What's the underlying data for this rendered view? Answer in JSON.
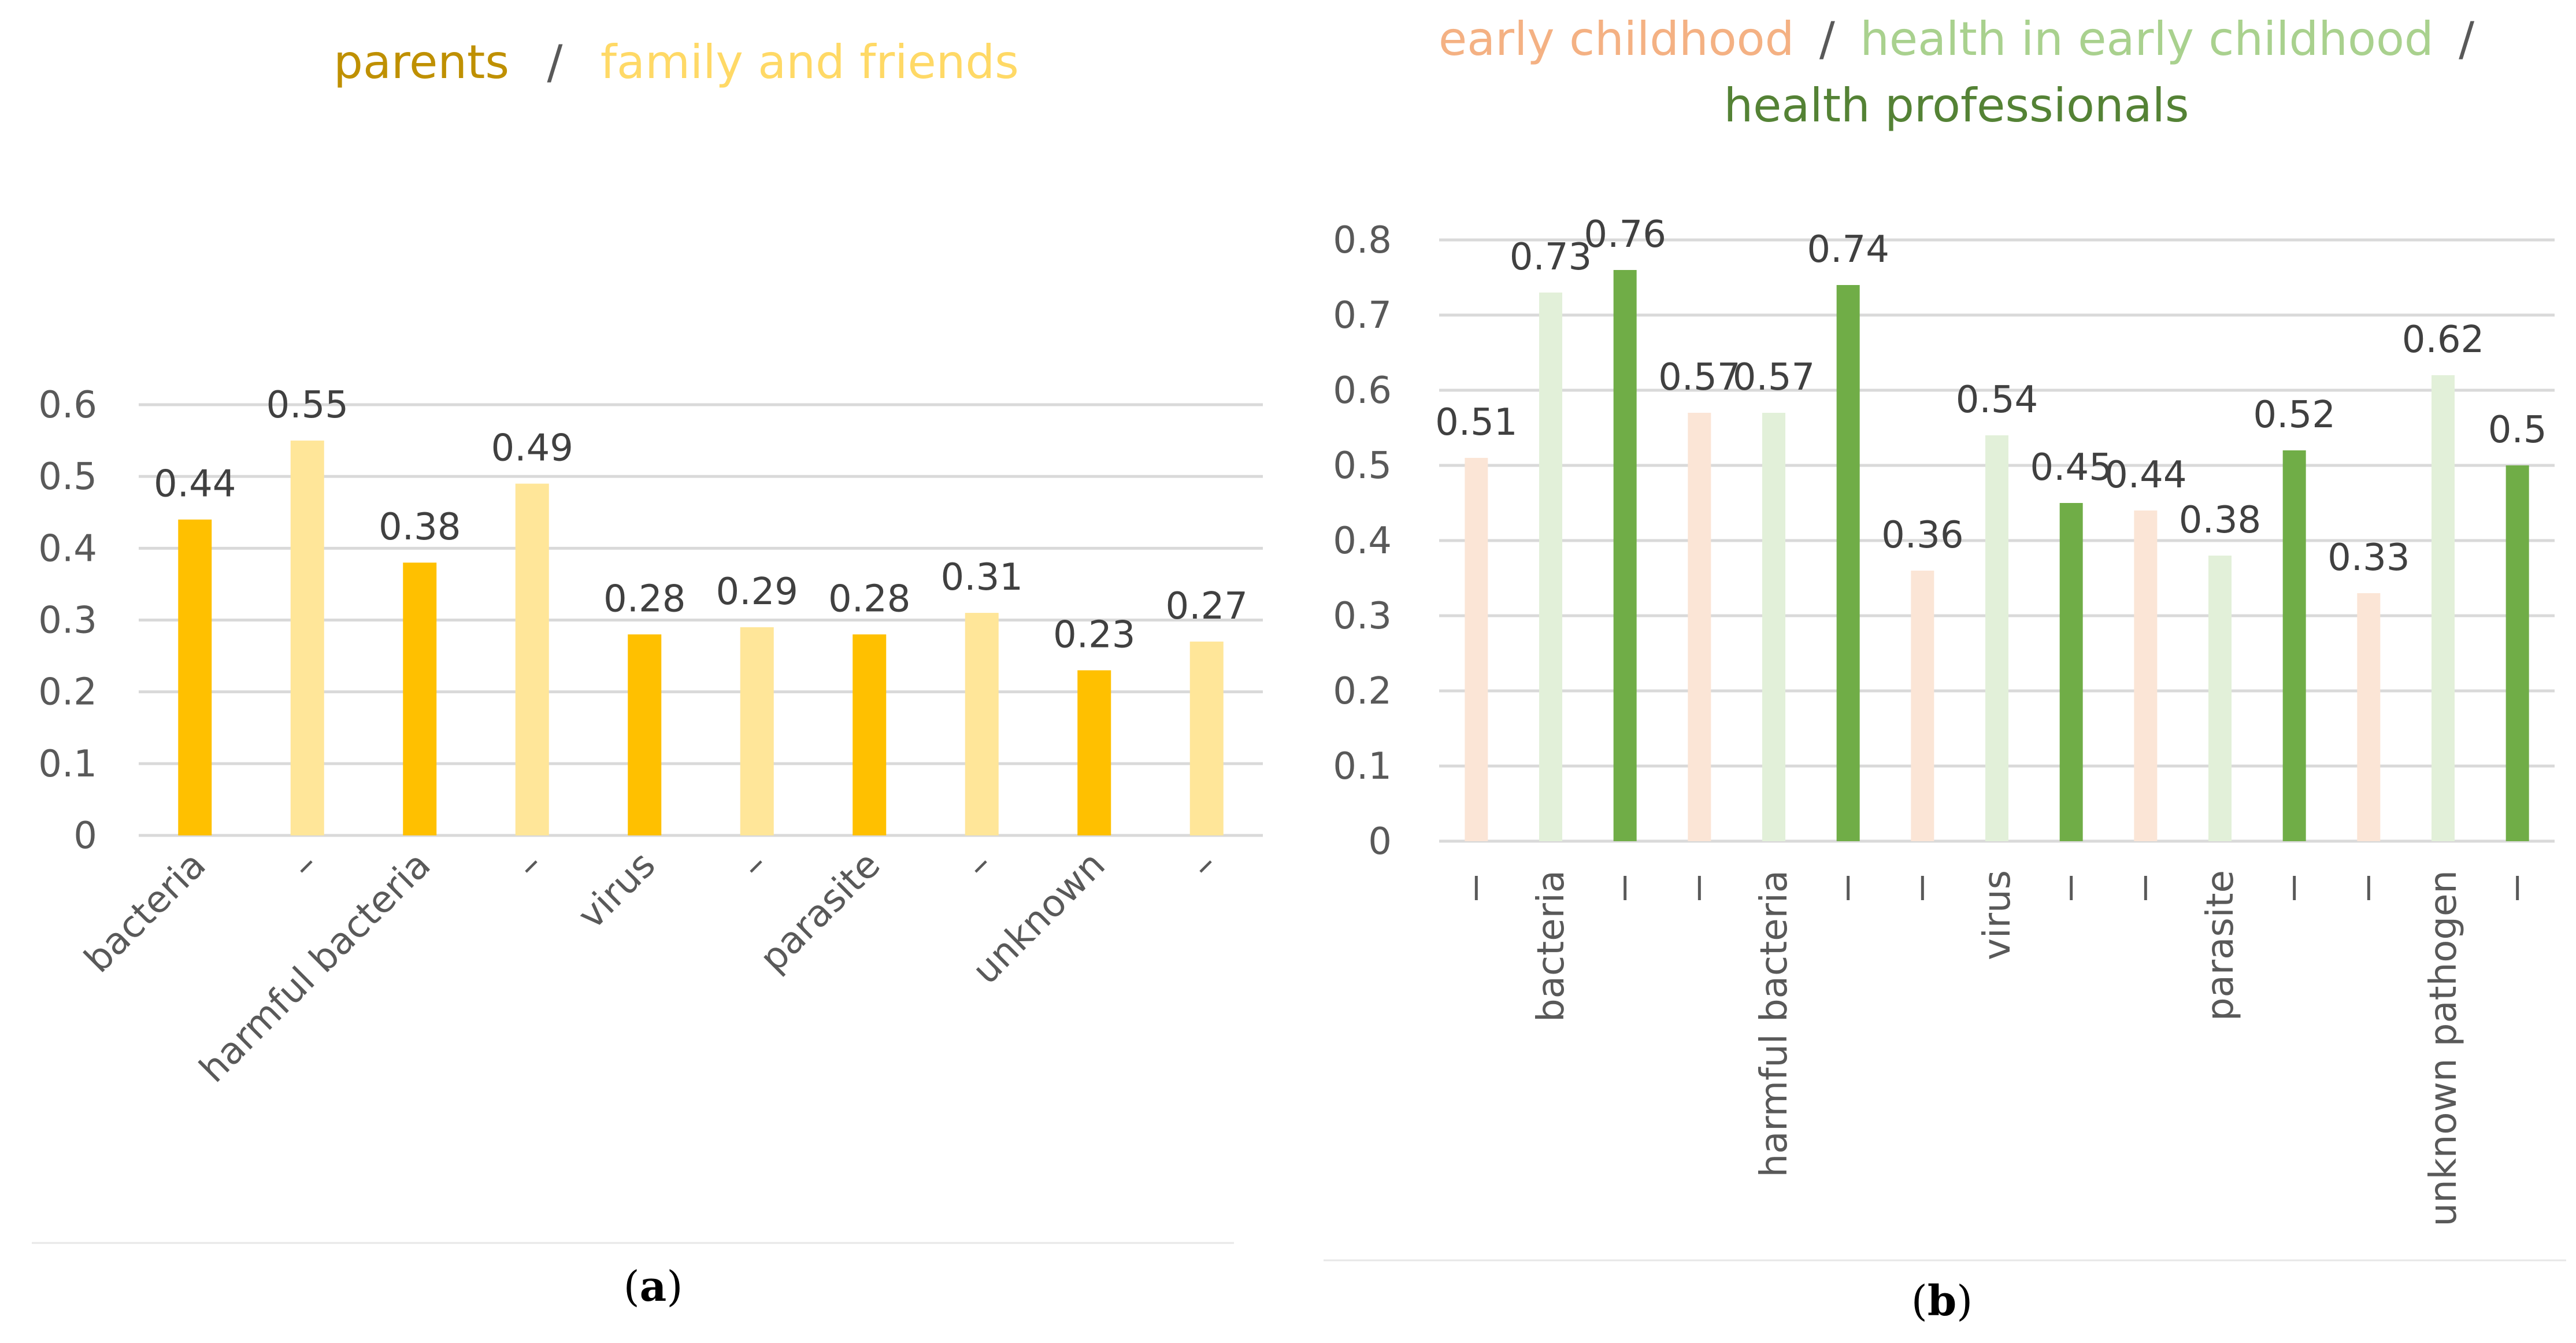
{
  "colors": {
    "parents": "#ffc000",
    "family_and_friends": "#ffe699",
    "early_childhood": "#fbe5d6",
    "health_in_early_childhood": "#e2f0d9",
    "health_professionals": "#70ad47",
    "title_parents": "#bf9000",
    "title_family": "#ffd966",
    "title_early": "#f4b183",
    "title_health_early": "#a9d18e",
    "title_health_prof": "#548235"
  },
  "chart_data": [
    {
      "id": "a",
      "type": "bar",
      "caption": "a",
      "title_parts": [
        "parents",
        "/",
        "family and friends"
      ],
      "categories": [
        "bacteria",
        "–",
        "harmful bacteria",
        "–",
        "virus",
        "–",
        "parasite",
        "–",
        "unknown",
        "–"
      ],
      "values": [
        0.44,
        0.55,
        0.38,
        0.49,
        0.28,
        0.29,
        0.28,
        0.31,
        0.23,
        0.27
      ],
      "bar_series": [
        "parents",
        "family_and_friends",
        "parents",
        "family_and_friends",
        "parents",
        "family_and_friends",
        "parents",
        "family_and_friends",
        "parents",
        "family_and_friends"
      ],
      "value_labels": [
        "0.44",
        "0.55",
        "0.38",
        "0.49",
        "0.28",
        "0.29",
        "0.28",
        "0.31",
        "0.23",
        "0.27"
      ],
      "ylim": [
        0,
        0.6
      ],
      "yticks": [
        "0",
        "0.1",
        "0.2",
        "0.3",
        "0.4",
        "0.5",
        "0.6"
      ],
      "grid": true
    },
    {
      "id": "b",
      "type": "bar",
      "caption": "b",
      "title_parts": [
        "early childhood",
        "/",
        "health in early childhood",
        "/",
        "health professionals"
      ],
      "categories": [
        "–",
        "bacteria",
        "–",
        "–",
        "harmful bacteria",
        "–",
        "–",
        "virus",
        "–",
        "–",
        "parasite",
        "–",
        "–",
        "unknown pathogen",
        "–"
      ],
      "values": [
        0.51,
        0.73,
        0.76,
        0.57,
        0.57,
        0.74,
        0.36,
        0.54,
        0.45,
        0.44,
        0.38,
        0.52,
        0.33,
        0.62,
        0.5
      ],
      "bar_series": [
        "early_childhood",
        "health_in_early_childhood",
        "health_professionals",
        "early_childhood",
        "health_in_early_childhood",
        "health_professionals",
        "early_childhood",
        "health_in_early_childhood",
        "health_professionals",
        "early_childhood",
        "health_in_early_childhood",
        "health_professionals",
        "early_childhood",
        "health_in_early_childhood",
        "health_professionals"
      ],
      "value_labels": [
        "0.51",
        "0.73",
        "0.76",
        "0.57",
        "0.57",
        "0.74",
        "0.36",
        "0.54",
        "0.45",
        "0.44",
        "0.38",
        "0.52",
        "0.33",
        "0.62",
        "0.5"
      ],
      "ylim": [
        0,
        0.8
      ],
      "yticks": [
        "0",
        "0.1",
        "0.2",
        "0.3",
        "0.4",
        "0.5",
        "0.6",
        "0.7",
        "0.8"
      ],
      "grid": true
    }
  ]
}
